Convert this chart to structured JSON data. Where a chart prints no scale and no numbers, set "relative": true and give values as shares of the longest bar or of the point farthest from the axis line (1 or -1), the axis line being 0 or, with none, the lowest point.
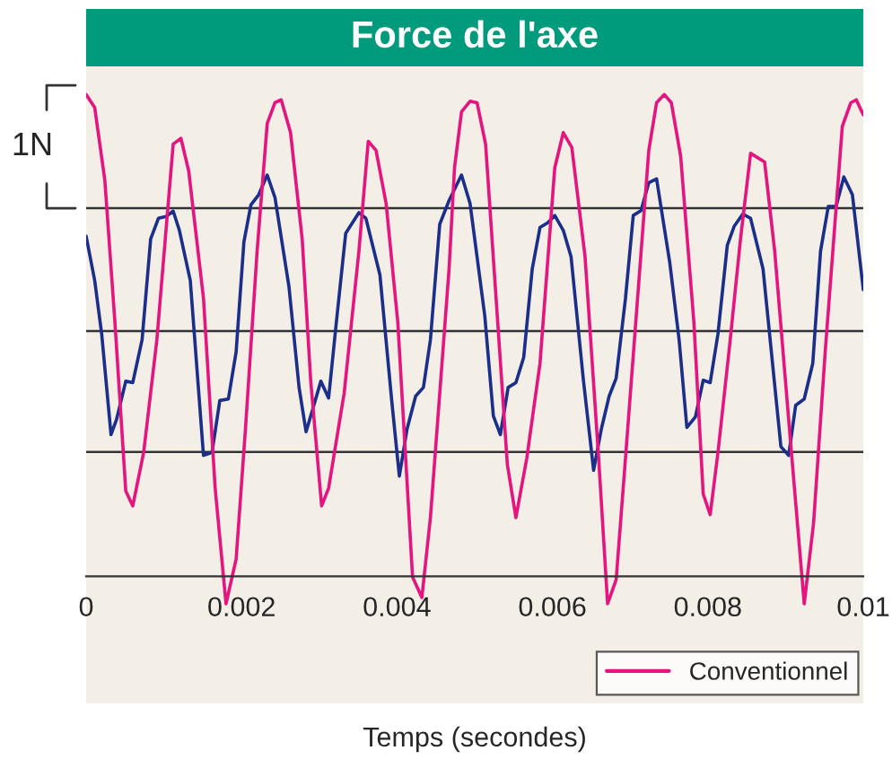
{
  "chart_data": {
    "type": "line",
    "title": "Force de l'axe",
    "xlabel": "Temps (secondes)",
    "relative": true,
    "xlim": [
      0,
      0.01
    ],
    "xticks": [
      0,
      0.002,
      0.004,
      0.006,
      0.008,
      0.01
    ],
    "legend": "bottom right",
    "grid": false,
    "marker": "none",
    "line_style": "solid",
    "annotations": [
      "1N"
    ],
    "ref_lines": [
      {
        "axis": "y",
        "value": 0.258,
        "color": "#333333"
      },
      {
        "axis": "y",
        "value": 0.509,
        "color": "#333333"
      },
      {
        "axis": "y",
        "value": 0.764,
        "color": "#333333"
      }
    ],
    "series": [
      {
        "color": "#1a2e8a",
        "x": [
          0,
          0.00011,
          0.0002,
          0.00032,
          0.00039,
          0.00051,
          0.0006,
          0.00072,
          0.00083,
          0.00093,
          0.00103,
          0.00112,
          0.0012,
          0.00134,
          0.00151,
          0.00162,
          0.00172,
          0.00183,
          0.00193,
          0.00203,
          0.00212,
          0.00222,
          0.00233,
          0.00243,
          0.00261,
          0.00274,
          0.00283,
          0.00293,
          0.00302,
          0.00312,
          0.00322,
          0.00334,
          0.00351,
          0.0036,
          0.00378,
          0.00393,
          0.00403,
          0.00413,
          0.00424,
          0.00434,
          0.00443,
          0.00455,
          0.00467,
          0.00483,
          0.00494,
          0.00513,
          0.00524,
          0.00533,
          0.00543,
          0.00553,
          0.00563,
          0.00574,
          0.00584,
          0.00594,
          0.00603,
          0.00614,
          0.00624,
          0.0064,
          0.00653,
          0.00663,
          0.00673,
          0.00682,
          0.00694,
          0.00704,
          0.00714,
          0.00724,
          0.00734,
          0.00751,
          0.00763,
          0.00773,
          0.00784,
          0.00794,
          0.00803,
          0.00813,
          0.00825,
          0.00834,
          0.00845,
          0.00855,
          0.00871,
          0.00894,
          0.00904,
          0.00913,
          0.00924,
          0.00935,
          0.00945,
          0.00955,
          0.00965,
          0.00975,
          0.00986,
          0.01
        ],
        "values": [
          0.706,
          0.614,
          0.503,
          0.294,
          0.325,
          0.405,
          0.402,
          0.491,
          0.7,
          0.743,
          0.747,
          0.758,
          0.718,
          0.614,
          0.251,
          0.257,
          0.365,
          0.368,
          0.466,
          0.694,
          0.771,
          0.792,
          0.833,
          0.786,
          0.601,
          0.392,
          0.3,
          0.355,
          0.405,
          0.37,
          0.528,
          0.712,
          0.755,
          0.743,
          0.626,
          0.368,
          0.208,
          0.306,
          0.374,
          0.392,
          0.491,
          0.731,
          0.78,
          0.833,
          0.774,
          0.54,
          0.333,
          0.294,
          0.392,
          0.402,
          0.454,
          0.638,
          0.724,
          0.734,
          0.749,
          0.718,
          0.663,
          0.405,
          0.22,
          0.306,
          0.374,
          0.411,
          0.577,
          0.749,
          0.759,
          0.817,
          0.825,
          0.651,
          0.491,
          0.309,
          0.331,
          0.407,
          0.402,
          0.503,
          0.687,
          0.727,
          0.752,
          0.743,
          0.638,
          0.269,
          0.251,
          0.355,
          0.368,
          0.442,
          0.675,
          0.768,
          0.768,
          0.829,
          0.792,
          0.595
        ]
      },
      {
        "name": "Conventionnel",
        "color": "#e5157f",
        "x": [
          0,
          0.00011,
          0.00024,
          0.00037,
          0.00051,
          0.0006,
          0.00074,
          0.00091,
          0.00112,
          0.00122,
          0.00132,
          0.00151,
          0.00166,
          0.0018,
          0.00193,
          0.00205,
          0.0022,
          0.00233,
          0.00243,
          0.00251,
          0.00263,
          0.00278,
          0.00289,
          0.00303,
          0.00312,
          0.00332,
          0.00351,
          0.00363,
          0.00373,
          0.00386,
          0.00401,
          0.0042,
          0.00432,
          0.00443,
          0.00467,
          0.00474,
          0.00483,
          0.00494,
          0.00503,
          0.00514,
          0.00528,
          0.00542,
          0.00553,
          0.00567,
          0.00584,
          0.00603,
          0.00614,
          0.00625,
          0.00642,
          0.00659,
          0.00671,
          0.00682,
          0.00694,
          0.00709,
          0.00724,
          0.00734,
          0.00744,
          0.00753,
          0.00765,
          0.00782,
          0.00794,
          0.00803,
          0.00813,
          0.00828,
          0.00842,
          0.00855,
          0.00873,
          0.00886,
          0.00905,
          0.00924,
          0.00936,
          0.00951,
          0.00973,
          0.00984,
          0.00991,
          0.01
        ],
        "values": [
          1,
          0.973,
          0.823,
          0.528,
          0.177,
          0.146,
          0.257,
          0.491,
          0.897,
          0.909,
          0.841,
          0.577,
          0.183,
          -0.057,
          0.036,
          0.306,
          0.675,
          0.94,
          0.983,
          0.989,
          0.921,
          0.7,
          0.405,
          0.146,
          0.183,
          0.38,
          0.675,
          0.903,
          0.884,
          0.774,
          0.528,
          -0.001,
          -0.044,
          0.122,
          0.638,
          0.848,
          0.964,
          0.986,
          0.983,
          0.897,
          0.565,
          0.232,
          0.122,
          0.245,
          0.442,
          0.848,
          0.921,
          0.89,
          0.663,
          0.257,
          -0.057,
          -0.007,
          0.245,
          0.565,
          0.884,
          0.983,
          1,
          0.983,
          0.872,
          0.528,
          0.171,
          0.128,
          0.257,
          0.479,
          0.7,
          0.878,
          0.86,
          0.675,
          0.306,
          -0.057,
          0.11,
          0.466,
          0.934,
          0.983,
          0.989,
          0.958
        ]
      }
    ]
  }
}
